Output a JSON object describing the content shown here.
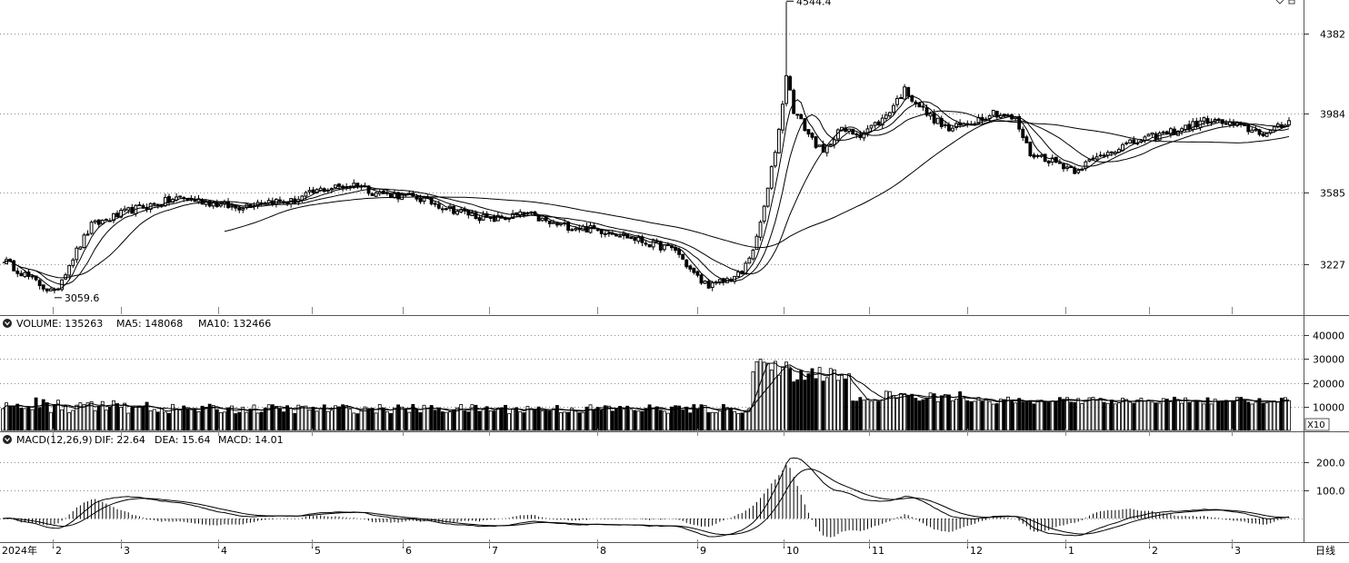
{
  "chart_data": [
    {
      "type": "candlestick",
      "panel": "price",
      "y_ticks": [
        3227,
        3585,
        3984,
        4382
      ],
      "ylim": [
        3010,
        4600
      ],
      "annotations": [
        {
          "label": "4544.4",
          "value": 4544.4,
          "x": "2024-10-08"
        },
        {
          "label": "3059.6",
          "value": 3059.6,
          "x": "2024-02-05"
        }
      ],
      "series": [
        {
          "name": "close",
          "x": [
            "2024-01",
            "2024-02",
            "2024-03",
            "2024-04",
            "2024-05",
            "2024-06",
            "2024-07",
            "2024-08",
            "2024-09",
            "2024-10",
            "2024-11",
            "2024-12",
            "2025-01",
            "2025-02",
            "2025-03"
          ],
          "values": [
            3200,
            3130,
            3350,
            3510,
            3510,
            3600,
            3450,
            3420,
            3330,
            3920,
            3950,
            3970,
            3950,
            3760,
            3910
          ]
        }
      ]
    },
    {
      "type": "bar",
      "panel": "volume",
      "legend": {
        "volume": "VOLUME: 135263",
        "ma5": "MA5: 148068",
        "ma10": "MA10: 132466"
      },
      "y_ticks": [
        10000,
        20000,
        30000,
        40000
      ],
      "ylim": [
        0,
        42000
      ],
      "scale_label": "X10"
    },
    {
      "type": "bar",
      "panel": "macd",
      "legend": {
        "title": "MACD(12,26,9)",
        "dif": "DIF: 22.64",
        "dea": "DEA: 15.64",
        "macd": "MACD: 14.01"
      },
      "y_ticks": [
        100.0,
        200.0
      ],
      "y_tick_labels": [
        "100.0",
        "200.0"
      ],
      "ylim": [
        -100,
        300
      ]
    }
  ],
  "x_axis": {
    "year_label": "2024年",
    "month_labels": [
      "2",
      "3",
      "4",
      "5",
      "6",
      "7",
      "8",
      "9",
      "10",
      "11",
      "12",
      "1",
      "2",
      "3"
    ],
    "period_label": "日线"
  },
  "colors": {
    "background": "#ffffff",
    "line": "#000000",
    "grid": "#9a9a9a"
  }
}
